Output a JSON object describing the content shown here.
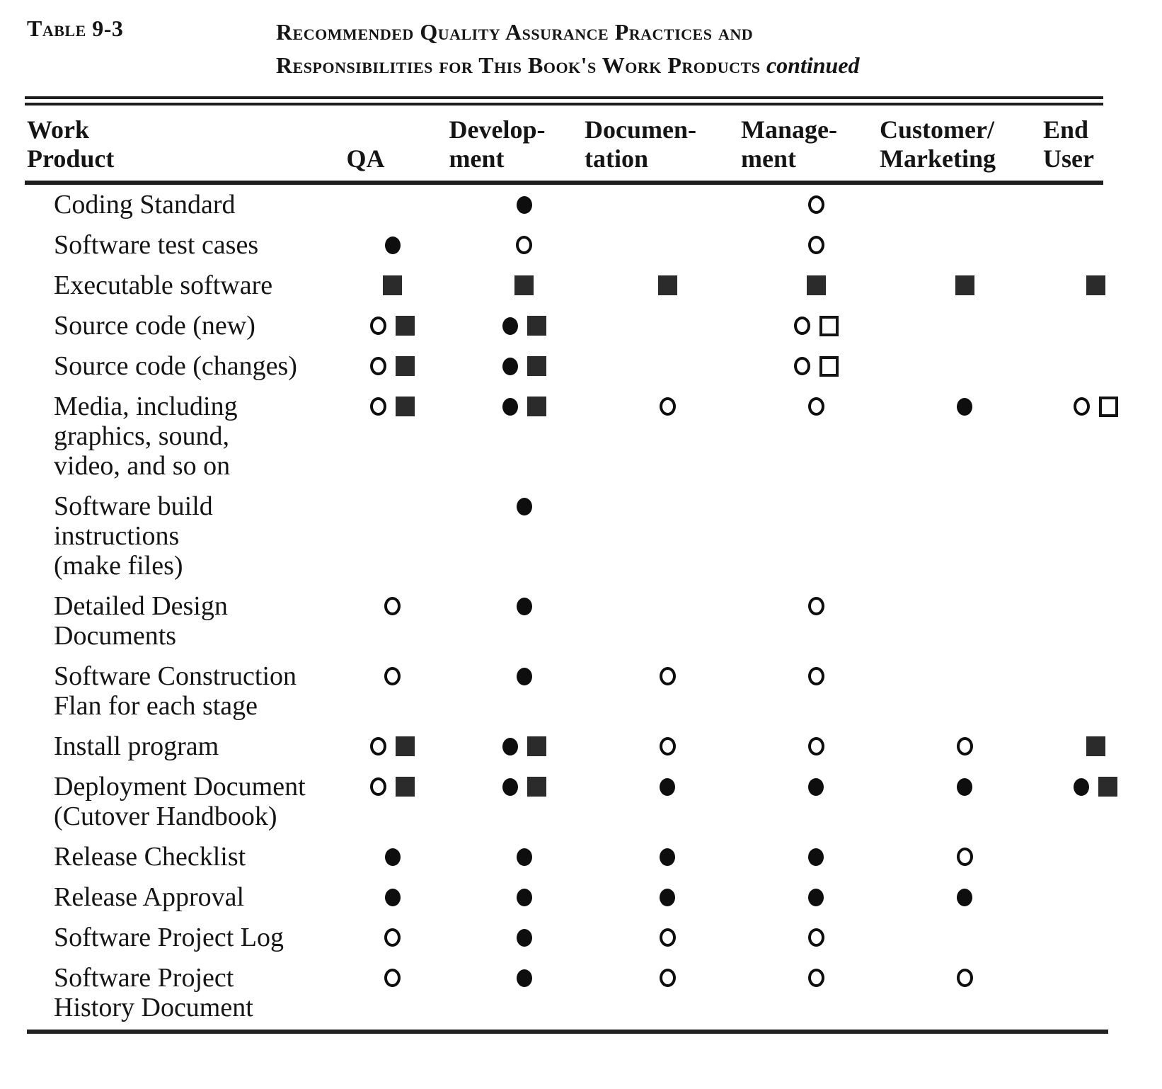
{
  "page": {
    "background": "#ffffff",
    "ink": "#151515"
  },
  "caption": {
    "table_label": "Table 9-3",
    "title_line1": "Recommended Quality Assurance Practices and",
    "title_line2": "Responsibilities for This Book's Work Products",
    "title_suffix": "continued"
  },
  "symbols_legend": {
    "filled-circle": "●",
    "open-circle": "○",
    "filled-square": "■",
    "open-square": "□"
  },
  "table": {
    "columns": [
      {
        "id": "work_product",
        "label": "Work\nProduct"
      },
      {
        "id": "qa",
        "label": "QA"
      },
      {
        "id": "development",
        "label": "Develop-\nment"
      },
      {
        "id": "documentation",
        "label": "Documen-\ntation"
      },
      {
        "id": "management",
        "label": "Manage-\nment"
      },
      {
        "id": "customer_marketing",
        "label": "Customer/\nMarketing"
      },
      {
        "id": "end_user",
        "label": "End\nUser"
      }
    ],
    "rows": [
      {
        "label": "Coding Standard",
        "cells": [
          [],
          [
            "filled-circle"
          ],
          [],
          [
            "open-circle"
          ],
          [],
          []
        ]
      },
      {
        "label": "Software test cases",
        "cells": [
          [
            "filled-circle"
          ],
          [
            "open-circle"
          ],
          [],
          [
            "open-circle"
          ],
          [],
          []
        ]
      },
      {
        "label": "Executable software",
        "cells": [
          [
            "filled-square"
          ],
          [
            "filled-square"
          ],
          [
            "filled-square"
          ],
          [
            "filled-square"
          ],
          [
            "filled-square"
          ],
          [
            "filled-square"
          ]
        ]
      },
      {
        "label": "Source code (new)",
        "cells": [
          [
            "open-circle",
            "filled-square"
          ],
          [
            "filled-circle",
            "filled-square"
          ],
          [],
          [
            "open-circle",
            "open-square"
          ],
          [],
          []
        ]
      },
      {
        "label": "Source code (changes)",
        "cells": [
          [
            "open-circle",
            "filled-square"
          ],
          [
            "filled-circle",
            "filled-square"
          ],
          [],
          [
            "open-circle",
            "open-square"
          ],
          [],
          []
        ]
      },
      {
        "label": "Media, including\ngraphics, sound,\nvideo, and so on",
        "cells": [
          [
            "open-circle",
            "filled-square"
          ],
          [
            "filled-circle",
            "filled-square"
          ],
          [
            "open-circle"
          ],
          [
            "open-circle"
          ],
          [
            "filled-circle"
          ],
          [
            "open-circle",
            "open-square"
          ]
        ]
      },
      {
        "label": "Software build\ninstructions\n(make files)",
        "cells": [
          [],
          [
            "filled-circle"
          ],
          [],
          [],
          [],
          []
        ]
      },
      {
        "label": "Detailed Design\nDocuments",
        "cells": [
          [
            "open-circle"
          ],
          [
            "filled-circle"
          ],
          [],
          [
            "open-circle"
          ],
          [],
          []
        ]
      },
      {
        "label": "Software Construction\nFlan for each stage",
        "cells": [
          [
            "open-circle"
          ],
          [
            "filled-circle"
          ],
          [
            "open-circle"
          ],
          [
            "open-circle"
          ],
          [],
          []
        ]
      },
      {
        "label": "Install program",
        "cells": [
          [
            "open-circle",
            "filled-square"
          ],
          [
            "filled-circle",
            "filled-square"
          ],
          [
            "open-circle"
          ],
          [
            "open-circle"
          ],
          [
            "open-circle"
          ],
          [
            "filled-square"
          ]
        ]
      },
      {
        "label": "Deployment Document\n(Cutover Handbook)",
        "cells": [
          [
            "open-circle",
            "filled-square"
          ],
          [
            "filled-circle",
            "filled-square"
          ],
          [
            "filled-circle"
          ],
          [
            "filled-circle"
          ],
          [
            "filled-circle"
          ],
          [
            "filled-circle",
            "filled-square"
          ]
        ]
      },
      {
        "label": "Release Checklist",
        "cells": [
          [
            "filled-circle"
          ],
          [
            "filled-circle"
          ],
          [
            "filled-circle"
          ],
          [
            "filled-circle"
          ],
          [
            "open-circle"
          ],
          []
        ]
      },
      {
        "label": "Release Approval",
        "cells": [
          [
            "filled-circle"
          ],
          [
            "filled-circle"
          ],
          [
            "filled-circle"
          ],
          [
            "filled-circle"
          ],
          [
            "filled-circle"
          ],
          []
        ]
      },
      {
        "label": "Software Project Log",
        "cells": [
          [
            "open-circle"
          ],
          [
            "filled-circle"
          ],
          [
            "open-circle"
          ],
          [
            "open-circle"
          ],
          [],
          []
        ]
      },
      {
        "label": "Software Project\nHistory Document",
        "cells": [
          [
            "open-circle"
          ],
          [
            "filled-circle"
          ],
          [
            "open-circle"
          ],
          [
            "open-circle"
          ],
          [
            "open-circle"
          ],
          []
        ]
      }
    ]
  }
}
